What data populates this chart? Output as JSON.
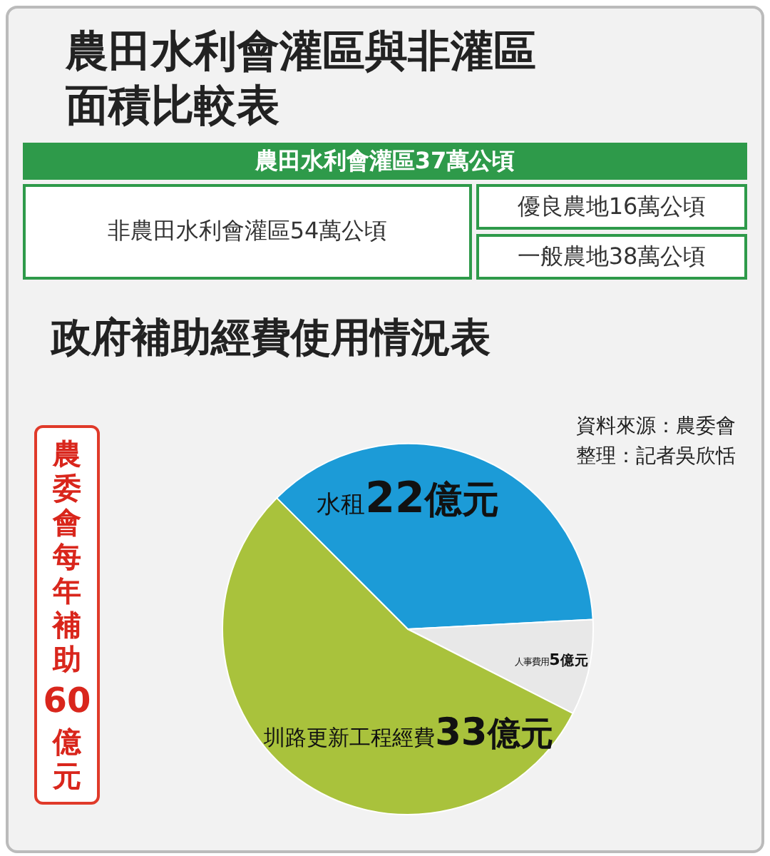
{
  "chart_data": [
    {
      "type": "other",
      "title": "農田水利會灌區與非灌區面積比較表",
      "annotations": [
        "農田水利會灌區37萬公頃",
        "非農田水利會灌區54萬公頃",
        "優良農地16萬公頃",
        "一般農地38萬公頃"
      ]
    },
    {
      "type": "pie",
      "title": "政府補助經費使用情況表",
      "categories": [
        "水租",
        "人事費用",
        "圳路更新工程經費"
      ],
      "values": [
        22,
        5,
        33
      ],
      "value_labels": [
        "22億元",
        "5億元",
        "33億元"
      ],
      "colors": [
        "#1c9bd7",
        "#e8e8e8",
        "#a9c23c"
      ],
      "legend": false,
      "annotations": [
        "資料來源：農委會",
        "整理：記者吳欣恬",
        "農委會每年補助60億元"
      ]
    }
  ]
}
